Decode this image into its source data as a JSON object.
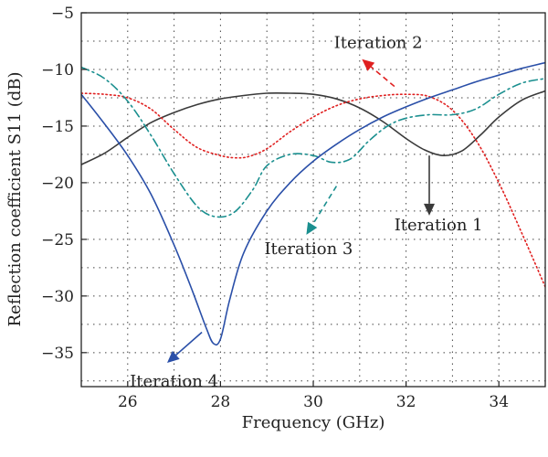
{
  "chart_data": {
    "type": "line",
    "xlabel": "Frequency (GHz)",
    "ylabel": "Reflection coefficient S11 (dB)",
    "xlim": [
      25,
      35
    ],
    "ylim": [
      -38,
      -5
    ],
    "x_ticks": [
      26,
      28,
      30,
      32,
      34
    ],
    "y_ticks": [
      -35,
      -30,
      -25,
      -20,
      -15,
      -10,
      -5
    ],
    "grid": true,
    "series": [
      {
        "name": "Iteration 1",
        "color": "#3a3a3a",
        "dash": "solid",
        "x": [
          25,
          25.5,
          26,
          26.5,
          27,
          27.5,
          28,
          28.5,
          29,
          29.5,
          30,
          30.5,
          31,
          31.5,
          32,
          32.4,
          32.8,
          33.2,
          33.6,
          34,
          34.5,
          35
        ],
        "y": [
          -18.4,
          -17.4,
          -16,
          -14.7,
          -13.8,
          -13.1,
          -12.6,
          -12.3,
          -12.1,
          -12.1,
          -12.2,
          -12.6,
          -13.4,
          -14.6,
          -16.1,
          -17.1,
          -17.6,
          -17.2,
          -15.8,
          -14.2,
          -12.7,
          -11.9
        ]
      },
      {
        "name": "Iteration 2",
        "color": "#e02020",
        "dash": "dotted",
        "x": [
          25,
          25.5,
          26,
          26.5,
          27,
          27.5,
          28,
          28.3,
          28.6,
          29,
          29.5,
          30,
          30.5,
          31,
          31.5,
          32,
          32.5,
          33,
          33.5,
          34,
          34.5,
          35
        ],
        "y": [
          -12.1,
          -12.2,
          -12.5,
          -13.5,
          -15.3,
          -16.9,
          -17.6,
          -17.8,
          -17.7,
          -17,
          -15.5,
          -14.2,
          -13.2,
          -12.6,
          -12.3,
          -12.2,
          -12.4,
          -13.6,
          -16.2,
          -20,
          -24.5,
          -29.2
        ]
      },
      {
        "name": "Iteration 3",
        "color": "#1a8f8f",
        "dash": "dashdot",
        "x": [
          25,
          25.5,
          26,
          26.5,
          27,
          27.5,
          27.9,
          28.3,
          28.7,
          29,
          29.5,
          30,
          30.4,
          30.8,
          31.2,
          31.6,
          32,
          32.5,
          33,
          33.5,
          34,
          34.5,
          35
        ],
        "y": [
          -9.8,
          -10.8,
          -12.8,
          -15.8,
          -19.2,
          -22.1,
          -23,
          -22.6,
          -20.6,
          -18.5,
          -17.5,
          -17.6,
          -18.2,
          -17.9,
          -16.3,
          -15,
          -14.3,
          -14,
          -14,
          -13.5,
          -12.2,
          -11.2,
          -10.8
        ]
      },
      {
        "name": "Iteration 4",
        "color": "#2a4fa8",
        "dash": "solid",
        "x": [
          25,
          25.5,
          26,
          26.5,
          27,
          27.4,
          27.7,
          27.85,
          28,
          28.2,
          28.5,
          29,
          29.5,
          30,
          30.5,
          31,
          31.5,
          32,
          32.5,
          33,
          33.5,
          34,
          34.5,
          35
        ],
        "y": [
          -12.2,
          -14.8,
          -17.6,
          -21,
          -25.5,
          -29.6,
          -32.9,
          -34.2,
          -33.8,
          -30.3,
          -26.2,
          -22.5,
          -20,
          -18.1,
          -16.6,
          -15.3,
          -14.2,
          -13.3,
          -12.5,
          -11.8,
          -11.1,
          -10.5,
          -9.9,
          -9.4
        ]
      }
    ],
    "annotations": [
      {
        "text": "Iteration 2",
        "color": "#e02020",
        "text_x": 31.4,
        "text_y": -8.1,
        "arrow_from": [
          31.75,
          -11.5
        ],
        "arrow_to": [
          31.05,
          -9.1
        ],
        "arrow_dash": "dashed"
      },
      {
        "text": "Iteration 1",
        "color": "#3a3a3a",
        "text_x": 32.7,
        "text_y": -24.2,
        "arrow_from": [
          32.5,
          -17.6
        ],
        "arrow_to": [
          32.5,
          -22.9
        ],
        "arrow_dash": "solid"
      },
      {
        "text": "Iteration 3",
        "color": "#1a8f8f",
        "text_x": 29.9,
        "text_y": -26.3,
        "arrow_from": [
          30.5,
          -20.3
        ],
        "arrow_to": [
          29.85,
          -24.6
        ],
        "arrow_dash": "dashed"
      },
      {
        "text": "Iteration 4",
        "color": "#2a4fa8",
        "text_x": 27.0,
        "text_y": -38.0,
        "arrow_from": [
          27.6,
          -33.2
        ],
        "arrow_to": [
          26.85,
          -35.9
        ],
        "arrow_dash": "solid"
      }
    ]
  }
}
